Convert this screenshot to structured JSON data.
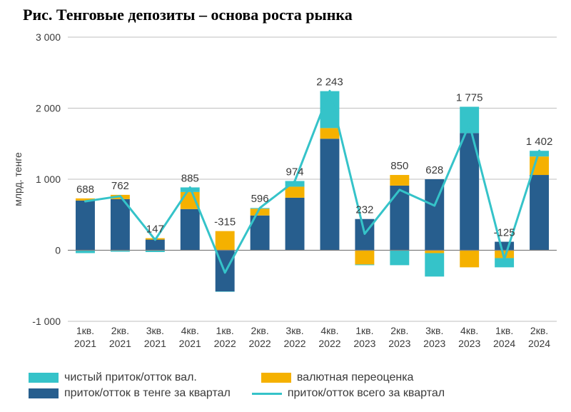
{
  "title": "Рис. Тенговые депозиты – основа роста рынка",
  "chart": {
    "type": "stacked-bar-with-line",
    "ylabel": "млрд. тенге",
    "ylim": [
      -1000,
      3000
    ],
    "ytick_step": 1000,
    "ytick_labels": [
      "-1 000",
      "0",
      "1 000",
      "2 000",
      "3 000"
    ],
    "label_fontsize": 14,
    "tick_fontsize": 14,
    "value_label_fontsize": 15,
    "title_fontsize": 22,
    "background_color": "#ffffff",
    "grid_color": "#bfbfbf",
    "axis_color": "#808080",
    "bar_width": 0.55,
    "categories": [
      "1кв.\n2021",
      "2кв.\n2021",
      "3кв.\n2021",
      "4кв.\n2021",
      "1кв.\n2022",
      "2кв.\n2022",
      "3кв.\n2022",
      "4кв.\n2022",
      "1кв.\n2023",
      "2кв.\n2023",
      "3кв.\n2023",
      "4кв.\n2023",
      "1кв.\n2024",
      "2кв.\n2024"
    ],
    "series": [
      {
        "name": "чистый приток/отток вал.",
        "key": "val_net",
        "color": "#35c3c9"
      },
      {
        "name": "валютная переоценка",
        "key": "fx_reval",
        "color": "#f5b100"
      },
      {
        "name": "приток/отток в тенге за квартал",
        "key": "tenge",
        "color": "#275e8e"
      }
    ],
    "line": {
      "name": "приток/отток всего за квартал",
      "color": "#35c3c9",
      "width": 3,
      "values": [
        688,
        762,
        147,
        885,
        -315,
        596,
        974,
        2243,
        232,
        850,
        628,
        1775,
        -125,
        1402
      ]
    },
    "stacks": {
      "tenge": [
        700,
        720,
        150,
        580,
        -580,
        490,
        740,
        1570,
        440,
        910,
        1000,
        1650,
        120,
        1060
      ],
      "fx_reval": [
        30,
        60,
        20,
        240,
        270,
        95,
        155,
        150,
        -200,
        150,
        -40,
        -240,
        -110,
        260
      ],
      "val_net": [
        -40,
        -20,
        -25,
        65,
        -5,
        10,
        80,
        520,
        -10,
        -210,
        -330,
        370,
        -130,
        80
      ]
    },
    "value_labels": [
      "688",
      "762",
      "147",
      "885",
      "-315",
      "596",
      "974",
      "2 243",
      "232",
      "850",
      "628",
      "1 775",
      "-125",
      "1 402"
    ]
  },
  "legend": {
    "row1": [
      {
        "label": "чистый приток/отток вал.",
        "color": "#35c3c9",
        "type": "box"
      },
      {
        "label": "валютная переоценка",
        "color": "#f5b100",
        "type": "box"
      }
    ],
    "row2": [
      {
        "label": "приток/отток в тенге за квартал",
        "color": "#275e8e",
        "type": "box"
      },
      {
        "label": "приток/отток всего за квартал",
        "color": "#35c3c9",
        "type": "line"
      }
    ]
  }
}
